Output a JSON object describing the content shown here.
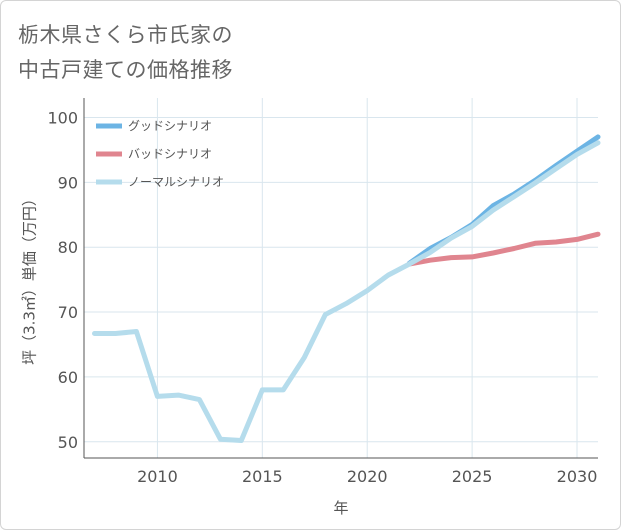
{
  "title": {
    "line1": "栃木県さくら市氏家の",
    "line2": "中古戸建ての価格推移"
  },
  "colors": {
    "good": "#6cb4e4",
    "bad": "#e0858f",
    "normal": "#b5dcec",
    "grid": "#d9e6ee",
    "axis": "#555555"
  },
  "chart_data": {
    "type": "line",
    "title": "栃木県さくら市氏家の中古戸建ての価格推移",
    "xlabel": "年",
    "ylabel": "坪（3.3㎡）単価（万円）",
    "xlim": [
      2006.5,
      2031
    ],
    "ylim": [
      47.5,
      103
    ],
    "x_ticks": [
      2010,
      2015,
      2020,
      2025,
      2030
    ],
    "y_ticks": [
      50,
      60,
      70,
      80,
      90,
      100
    ],
    "x_tick_labels": [
      "2010",
      "2015",
      "2020",
      "2025",
      "2030"
    ],
    "y_tick_labels": [
      "50",
      "60",
      "70",
      "80",
      "90",
      "100"
    ],
    "legend_position": "top-left",
    "series": [
      {
        "name": "グッドシナリオ",
        "key": "good",
        "x": [
          2022,
          2023,
          2024,
          2025,
          2026,
          2027,
          2028,
          2029,
          2030,
          2031
        ],
        "y": [
          77.5,
          79.8,
          81.5,
          83.5,
          86.4,
          88.2,
          90.3,
          92.6,
          94.8,
          97.0
        ]
      },
      {
        "name": "バッドシナリオ",
        "key": "bad",
        "x": [
          2022,
          2023,
          2024,
          2025,
          2026,
          2027,
          2028,
          2029,
          2030,
          2031
        ],
        "y": [
          77.4,
          78.0,
          78.4,
          78.5,
          79.1,
          79.8,
          80.6,
          80.8,
          81.2,
          82.0
        ]
      },
      {
        "name": "ノーマルシナリオ",
        "key": "normal",
        "x": [
          2007,
          2008,
          2009,
          2010,
          2011,
          2012,
          2013,
          2014,
          2015,
          2016,
          2017,
          2018,
          2019,
          2020,
          2021,
          2022,
          2023,
          2024,
          2025,
          2026,
          2027,
          2028,
          2029,
          2030,
          2031
        ],
        "y": [
          66.7,
          66.7,
          67.0,
          57.0,
          57.2,
          56.5,
          50.4,
          50.2,
          58.0,
          58.0,
          63.0,
          69.6,
          71.3,
          73.3,
          75.7,
          77.4,
          79.2,
          81.4,
          83.2,
          85.7,
          87.8,
          89.9,
          92.1,
          94.3,
          96.1
        ]
      }
    ]
  }
}
